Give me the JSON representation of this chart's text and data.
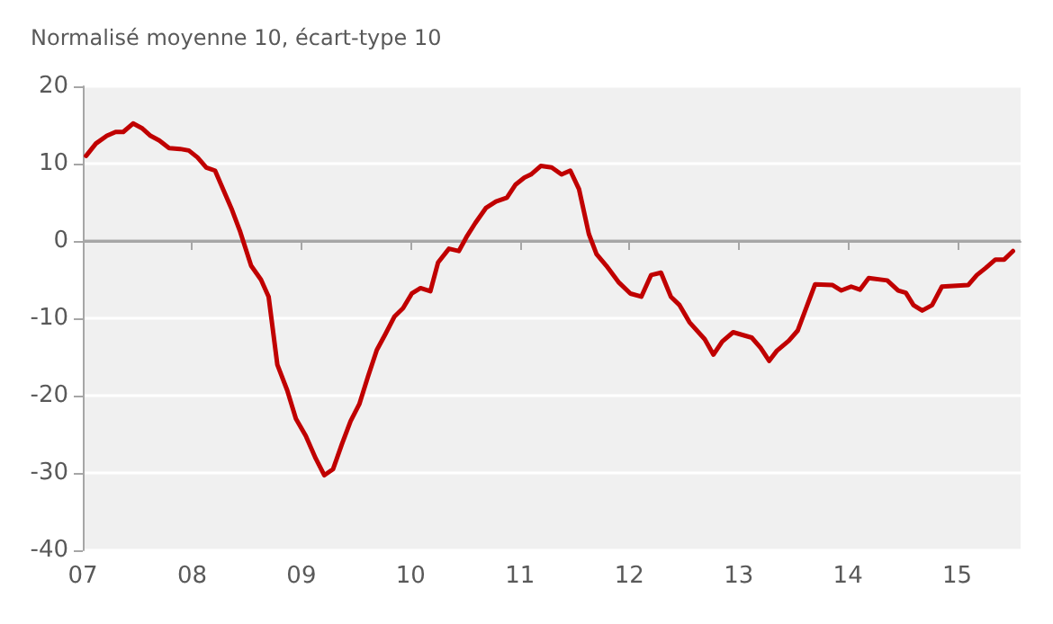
{
  "chart_data": {
    "type": "line",
    "title": "Normalisé moyenne 10, écart-type 10",
    "x": [
      2007.03,
      2007.12,
      2007.22,
      2007.3,
      2007.37,
      2007.46,
      2007.54,
      2007.62,
      2007.7,
      2007.79,
      2007.89,
      2007.97,
      2008.05,
      2008.13,
      2008.21,
      2008.28,
      2008.36,
      2008.44,
      2008.54,
      2008.63,
      2008.7,
      2008.78,
      2008.87,
      2008.95,
      2009.04,
      2009.13,
      2009.21,
      2009.29,
      2009.37,
      2009.45,
      2009.53,
      2009.61,
      2009.69,
      2009.77,
      2009.85,
      2009.93,
      2010.01,
      2010.09,
      2010.18,
      2010.25,
      2010.35,
      2010.44,
      2010.51,
      2010.59,
      2010.69,
      2010.78,
      2010.88,
      2010.96,
      2011.04,
      2011.1,
      2011.19,
      2011.29,
      2011.38,
      2011.46,
      2011.54,
      2011.63,
      2011.7,
      2011.79,
      2011.9,
      2012.01,
      2012.11,
      2012.2,
      2012.29,
      2012.38,
      2012.46,
      2012.55,
      2012.69,
      2012.77,
      2012.85,
      2012.95,
      2013.12,
      2013.2,
      2013.28,
      2013.35,
      2013.46,
      2013.54,
      2013.7,
      2013.86,
      2013.94,
      2014.03,
      2014.11,
      2014.19,
      2014.36,
      2014.46,
      2014.53,
      2014.6,
      2014.68,
      2014.77,
      2014.86,
      2015.1,
      2015.18,
      2015.26,
      2015.35,
      2015.43,
      2015.51
    ],
    "series": [
      {
        "color": "#c00000",
        "values": [
          11.0,
          12.6,
          13.6,
          14.1,
          14.1,
          15.2,
          14.6,
          13.6,
          13.0,
          12.0,
          11.9,
          11.7,
          10.8,
          9.5,
          9.1,
          6.8,
          4.2,
          1.2,
          -3.2,
          -5.0,
          -7.2,
          -16.0,
          -19.3,
          -23.0,
          -25.2,
          -28.1,
          -30.3,
          -29.5,
          -26.3,
          -23.3,
          -21.1,
          -17.5,
          -14.1,
          -12.0,
          -9.8,
          -8.7,
          -6.8,
          -6.1,
          -6.5,
          -2.8,
          -1.0,
          -1.3,
          0.5,
          2.3,
          4.3,
          5.1,
          5.6,
          7.3,
          8.2,
          8.6,
          9.7,
          9.5,
          8.6,
          9.1,
          6.7,
          0.9,
          -1.7,
          -3.2,
          -5.3,
          -6.8,
          -7.2,
          -4.4,
          -4.1,
          -7.2,
          -8.3,
          -10.5,
          -12.7,
          -14.7,
          -13.0,
          -11.8,
          -12.5,
          -13.8,
          -15.5,
          -14.2,
          -12.9,
          -11.6,
          -5.6,
          -5.7,
          -6.4,
          -5.9,
          -6.3,
          -4.8,
          -5.1,
          -6.4,
          -6.7,
          -8.3,
          -9.0,
          -8.3,
          -5.9,
          -5.7,
          -4.4,
          -3.5,
          -2.4,
          -2.4,
          -1.3
        ]
      }
    ],
    "xlim": [
      2007,
      2015.58
    ],
    "xticks": [
      {
        "value": 2007,
        "label": "07"
      },
      {
        "value": 2008,
        "label": "08"
      },
      {
        "value": 2009,
        "label": "09"
      },
      {
        "value": 2010,
        "label": "10"
      },
      {
        "value": 2011,
        "label": "11"
      },
      {
        "value": 2012,
        "label": "12"
      },
      {
        "value": 2013,
        "label": "13"
      },
      {
        "value": 2014,
        "label": "14"
      },
      {
        "value": 2015,
        "label": "15"
      }
    ],
    "ylim": [
      -40,
      20
    ],
    "yticks": [
      -40,
      -30,
      -20,
      -10,
      0,
      10,
      20
    ],
    "ref_lines": [
      {
        "axis": "y",
        "value": 0,
        "color": "#a6a6a6"
      }
    ],
    "grid": "y",
    "marker": "none",
    "line_style": "solid"
  }
}
